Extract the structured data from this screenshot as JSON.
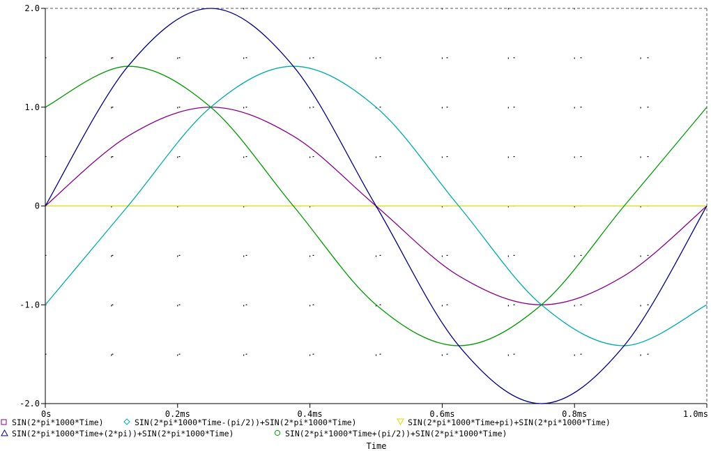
{
  "chart_data": {
    "type": "line",
    "title": "",
    "xlabel": "Time",
    "ylabel": "",
    "xlim": [
      0,
      1.0
    ],
    "ylim": [
      -2.0,
      2.0
    ],
    "x_unit": "ms",
    "grid": "dotted",
    "legend_placement": "bottom",
    "x_ticks": [
      {
        "value": 0,
        "label": "0s"
      },
      {
        "value": 0.2,
        "label": "0.2ms"
      },
      {
        "value": 0.4,
        "label": "0.4ms"
      },
      {
        "value": 0.6,
        "label": "0.6ms"
      },
      {
        "value": 0.8,
        "label": "0.8ms"
      },
      {
        "value": 1.0,
        "label": "1.0ms"
      }
    ],
    "y_ticks": [
      {
        "value": 2.0,
        "label": "2.0"
      },
      {
        "value": 1.0,
        "label": "1.0"
      },
      {
        "value": 0,
        "label": "0"
      },
      {
        "value": -1.0,
        "label": "-1.0"
      },
      {
        "value": -2.0,
        "label": "-2.0"
      }
    ],
    "series": [
      {
        "name": "SIN(2*pi*1000*Time)",
        "color": "#880088",
        "marker": "square",
        "x": [
          0,
          0.125,
          0.25,
          0.375,
          0.5,
          0.625,
          0.75,
          0.875,
          1.0
        ],
        "values": [
          0,
          0.707,
          1.0,
          0.707,
          0,
          -0.707,
          -1.0,
          -0.707,
          0
        ]
      },
      {
        "name": "SIN(2*pi*1000*Time-(pi/2))+SIN(2*pi*1000*Time)",
        "color": "#00aaaa",
        "marker": "diamond",
        "x": [
          0,
          0.125,
          0.25,
          0.375,
          0.5,
          0.625,
          0.75,
          0.875,
          1.0
        ],
        "values": [
          -1.0,
          0,
          1.0,
          1.414,
          1.0,
          0,
          -1.0,
          -1.414,
          -1.0
        ]
      },
      {
        "name": "SIN(2*pi*1000*Time+pi)+SIN(2*pi*1000*Time)",
        "color": "#dddd00",
        "marker": "triangle-down",
        "x": [
          0,
          0.125,
          0.25,
          0.375,
          0.5,
          0.625,
          0.75,
          0.875,
          1.0
        ],
        "values": [
          0,
          0,
          0,
          0,
          0,
          0,
          0,
          0,
          0
        ]
      },
      {
        "name": "SIN(2*pi*1000*Time+(2*pi))+SIN(2*pi*1000*Time)",
        "color": "#000088",
        "marker": "triangle-up",
        "x": [
          0,
          0.125,
          0.25,
          0.375,
          0.5,
          0.625,
          0.75,
          0.875,
          1.0
        ],
        "values": [
          0,
          1.414,
          2.0,
          1.414,
          0,
          -1.414,
          -2.0,
          -1.414,
          0
        ]
      },
      {
        "name": "SIN(2*pi*1000*Time+(pi/2))+SIN(2*pi*1000*Time)",
        "color": "#009900",
        "marker": "circle",
        "x": [
          0,
          0.125,
          0.25,
          0.375,
          0.5,
          0.625,
          0.75,
          0.875,
          1.0
        ],
        "values": [
          1.0,
          1.414,
          1.0,
          0,
          -1.0,
          -1.414,
          -1.0,
          0,
          1.0
        ]
      }
    ]
  }
}
